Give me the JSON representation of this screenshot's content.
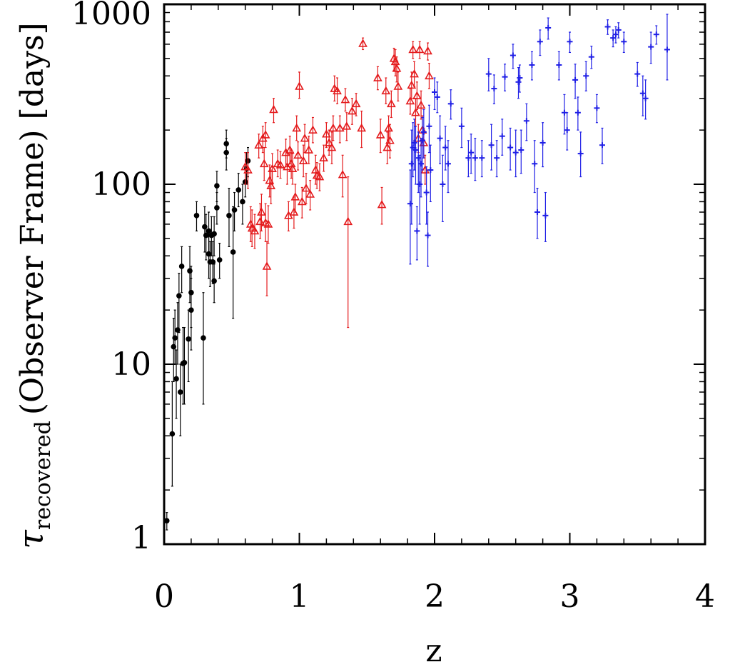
{
  "chart_data": {
    "type": "scatter",
    "xlabel": "z",
    "ylabel": {
      "symbol": "τ",
      "subscript": "recovered",
      "text": "(Observer Frame) [days]"
    },
    "xlim": [
      0,
      4
    ],
    "ylim": [
      1,
      1000
    ],
    "yscale": "log",
    "x_ticks": [
      "0",
      "1",
      "2",
      "3",
      "4"
    ],
    "y_ticks": [
      "1",
      "10",
      "100",
      "1000"
    ],
    "grid": false,
    "legend": "none",
    "colors": {
      "low_z": "#000000",
      "mid_z": "#e41a1c",
      "high_z": "#1f1fe6"
    },
    "series": [
      {
        "marker": "filled-circle",
        "color": "#000000",
        "points": [
          [
            0.02,
            1.35,
            1.2,
            1.5
          ],
          [
            0.06,
            4.1,
            2.1,
            8.0
          ],
          [
            0.07,
            12.5,
            8,
            18
          ],
          [
            0.08,
            14,
            10,
            20
          ],
          [
            0.09,
            8.3,
            5,
            12
          ],
          [
            0.1,
            15.5,
            10,
            22
          ],
          [
            0.11,
            24,
            15,
            32
          ],
          [
            0.12,
            7,
            4,
            10
          ],
          [
            0.13,
            35,
            25,
            45
          ],
          [
            0.14,
            10.1,
            6,
            16
          ],
          [
            0.15,
            10.2,
            6,
            16
          ],
          [
            0.18,
            13.8,
            8,
            20
          ],
          [
            0.19,
            33,
            22,
            45
          ],
          [
            0.2,
            20,
            12,
            30
          ],
          [
            0.2,
            25,
            16,
            35
          ],
          [
            0.24,
            67,
            55,
            80
          ],
          [
            0.29,
            14,
            6,
            25
          ],
          [
            0.3,
            58,
            42,
            75
          ],
          [
            0.31,
            52,
            38,
            68
          ],
          [
            0.33,
            41,
            30,
            55
          ],
          [
            0.33,
            55,
            42,
            70
          ],
          [
            0.34,
            37,
            27,
            48
          ],
          [
            0.35,
            52,
            40,
            66
          ],
          [
            0.36,
            37,
            28,
            48
          ],
          [
            0.37,
            53,
            40,
            66
          ],
          [
            0.37,
            29,
            22,
            36
          ],
          [
            0.39,
            98,
            80,
            118
          ],
          [
            0.39,
            74,
            60,
            90
          ],
          [
            0.41,
            38,
            30,
            47
          ],
          [
            0.46,
            150,
            120,
            180
          ],
          [
            0.46,
            168,
            140,
            200
          ],
          [
            0.48,
            67,
            45,
            95
          ],
          [
            0.51,
            42,
            18,
            75
          ],
          [
            0.52,
            72,
            55,
            90
          ],
          [
            0.55,
            93,
            75,
            115
          ],
          [
            0.58,
            80,
            60,
            100
          ],
          [
            0.6,
            103,
            85,
            125
          ],
          [
            0.61,
            122,
            100,
            150
          ],
          [
            0.62,
            135,
            110,
            160
          ]
        ]
      },
      {
        "marker": "open-triangle",
        "color": "#e41a1c",
        "points": [
          [
            0.6,
            125,
            100,
            150
          ],
          [
            0.62,
            120,
            95,
            150
          ],
          [
            0.64,
            60,
            48,
            75
          ],
          [
            0.65,
            57,
            45,
            72
          ],
          [
            0.67,
            55,
            44,
            68
          ],
          [
            0.7,
            165,
            140,
            190
          ],
          [
            0.71,
            62,
            50,
            78
          ],
          [
            0.72,
            70,
            55,
            88
          ],
          [
            0.73,
            180,
            150,
            210
          ],
          [
            0.74,
            130,
            105,
            160
          ],
          [
            0.75,
            188,
            160,
            220
          ],
          [
            0.75,
            61,
            48,
            78
          ],
          [
            0.76,
            35,
            24,
            48
          ],
          [
            0.77,
            60,
            47,
            76
          ],
          [
            0.78,
            105,
            85,
            128
          ],
          [
            0.79,
            98,
            78,
            120
          ],
          [
            0.8,
            122,
            100,
            148
          ],
          [
            0.81,
            260,
            220,
            300
          ],
          [
            0.84,
            130,
            110,
            155
          ],
          [
            0.86,
            128,
            108,
            152
          ],
          [
            0.9,
            150,
            125,
            178
          ],
          [
            0.91,
            125,
            100,
            152
          ],
          [
            0.92,
            67,
            55,
            80
          ],
          [
            0.93,
            155,
            130,
            185
          ],
          [
            0.94,
            130,
            108,
            155
          ],
          [
            0.95,
            122,
            100,
            148
          ],
          [
            0.96,
            70,
            57,
            85
          ],
          [
            0.97,
            85,
            70,
            100
          ],
          [
            0.98,
            205,
            175,
            240
          ],
          [
            0.99,
            145,
            120,
            172
          ],
          [
            1.0,
            350,
            300,
            420
          ],
          [
            1.02,
            80,
            65,
            96
          ],
          [
            1.03,
            135,
            110,
            165
          ],
          [
            1.04,
            180,
            150,
            215
          ],
          [
            1.05,
            95,
            78,
            115
          ],
          [
            1.07,
            155,
            130,
            185
          ],
          [
            1.08,
            88,
            72,
            105
          ],
          [
            1.1,
            200,
            170,
            235
          ],
          [
            1.12,
            120,
            100,
            145
          ],
          [
            1.13,
            112,
            95,
            132
          ],
          [
            1.15,
            110,
            92,
            130
          ],
          [
            1.18,
            140,
            118,
            165
          ],
          [
            1.2,
            190,
            160,
            220
          ],
          [
            1.22,
            170,
            145,
            200
          ],
          [
            1.24,
            160,
            130,
            195
          ],
          [
            1.25,
            205,
            175,
            240
          ],
          [
            1.26,
            340,
            290,
            400
          ],
          [
            1.28,
            330,
            280,
            390
          ],
          [
            1.3,
            205,
            170,
            240
          ],
          [
            1.32,
            113,
            85,
            145
          ],
          [
            1.34,
            295,
            255,
            340
          ],
          [
            1.35,
            210,
            175,
            250
          ],
          [
            1.36,
            62,
            16,
            110
          ],
          [
            1.39,
            255,
            215,
            300
          ],
          [
            1.42,
            280,
            240,
            320
          ],
          [
            1.46,
            205,
            160,
            255
          ],
          [
            1.47,
            605,
            560,
            650
          ],
          [
            1.58,
            390,
            335,
            450
          ],
          [
            1.6,
            188,
            150,
            230
          ],
          [
            1.61,
            77,
            60,
            96
          ],
          [
            1.64,
            330,
            280,
            390
          ],
          [
            1.65,
            160,
            130,
            195
          ],
          [
            1.66,
            205,
            170,
            240
          ],
          [
            1.67,
            175,
            140,
            215
          ],
          [
            1.68,
            280,
            235,
            330
          ],
          [
            1.7,
            500,
            430,
            570
          ],
          [
            1.71,
            480,
            400,
            560
          ],
          [
            1.72,
            440,
            370,
            510
          ],
          [
            1.73,
            350,
            290,
            420
          ],
          [
            1.82,
            290,
            245,
            340
          ],
          [
            1.83,
            355,
            300,
            420
          ],
          [
            1.84,
            560,
            500,
            620
          ],
          [
            1.85,
            410,
            350,
            480
          ],
          [
            1.86,
            250,
            210,
            300
          ],
          [
            1.87,
            310,
            260,
            370
          ],
          [
            1.88,
            180,
            150,
            215
          ],
          [
            1.89,
            560,
            500,
            620
          ],
          [
            1.9,
            275,
            230,
            330
          ],
          [
            1.91,
            200,
            165,
            240
          ],
          [
            1.92,
            170,
            140,
            205
          ],
          [
            1.93,
            120,
            100,
            145
          ],
          [
            1.95,
            550,
            490,
            610
          ],
          [
            1.96,
            400,
            340,
            470
          ]
        ]
      },
      {
        "marker": "plus",
        "color": "#1f1fe6",
        "points": [
          [
            1.82,
            78,
            36,
            120
          ],
          [
            1.83,
            130,
            60,
            200
          ],
          [
            1.84,
            160,
            110,
            220
          ],
          [
            1.85,
            170,
            120,
            230
          ],
          [
            1.86,
            155,
            100,
            210
          ],
          [
            1.87,
            55,
            38,
            75
          ],
          [
            1.88,
            140,
            90,
            195
          ],
          [
            1.89,
            100,
            60,
            145
          ],
          [
            1.9,
            130,
            85,
            180
          ],
          [
            1.91,
            175,
            120,
            235
          ],
          [
            1.92,
            195,
            140,
            260
          ],
          [
            1.94,
            90,
            60,
            125
          ],
          [
            1.95,
            52,
            35,
            70
          ],
          [
            1.96,
            210,
            150,
            275
          ],
          [
            1.97,
            120,
            80,
            165
          ],
          [
            2.0,
            325,
            260,
            390
          ],
          [
            2.02,
            305,
            250,
            370
          ],
          [
            2.04,
            180,
            130,
            240
          ],
          [
            2.06,
            100,
            62,
            145
          ],
          [
            2.08,
            160,
            120,
            210
          ],
          [
            2.1,
            130,
            90,
            175
          ],
          [
            2.12,
            280,
            230,
            335
          ],
          [
            2.2,
            210,
            160,
            265
          ],
          [
            2.25,
            140,
            110,
            175
          ],
          [
            2.27,
            150,
            115,
            190
          ],
          [
            2.3,
            140,
            105,
            180
          ],
          [
            2.35,
            140,
            110,
            175
          ],
          [
            2.4,
            410,
            330,
            500
          ],
          [
            2.42,
            165,
            120,
            215
          ],
          [
            2.44,
            340,
            280,
            405
          ],
          [
            2.46,
            140,
            110,
            175
          ],
          [
            2.5,
            185,
            145,
            230
          ],
          [
            2.52,
            395,
            330,
            465
          ],
          [
            2.56,
            160,
            120,
            205
          ],
          [
            2.58,
            520,
            440,
            600
          ],
          [
            2.6,
            150,
            110,
            200
          ],
          [
            2.62,
            370,
            300,
            445
          ],
          [
            2.63,
            390,
            325,
            460
          ],
          [
            2.64,
            155,
            115,
            200
          ],
          [
            2.68,
            225,
            175,
            280
          ],
          [
            2.72,
            460,
            380,
            545
          ],
          [
            2.74,
            130,
            90,
            175
          ],
          [
            2.76,
            70,
            50,
            95
          ],
          [
            2.78,
            620,
            520,
            720
          ],
          [
            2.8,
            170,
            125,
            220
          ],
          [
            2.82,
            67,
            48,
            90
          ],
          [
            2.84,
            740,
            640,
            840
          ],
          [
            2.92,
            460,
            380,
            545
          ],
          [
            2.96,
            250,
            190,
            315
          ],
          [
            2.98,
            200,
            155,
            250
          ],
          [
            3.0,
            620,
            540,
            700
          ],
          [
            3.04,
            380,
            300,
            465
          ],
          [
            3.06,
            250,
            200,
            305
          ],
          [
            3.08,
            148,
            110,
            195
          ],
          [
            3.12,
            400,
            330,
            480
          ],
          [
            3.16,
            510,
            440,
            585
          ],
          [
            3.2,
            265,
            220,
            315
          ],
          [
            3.24,
            165,
            130,
            205
          ],
          [
            3.28,
            750,
            680,
            820
          ],
          [
            3.32,
            650,
            580,
            720
          ],
          [
            3.34,
            680,
            610,
            750
          ],
          [
            3.36,
            720,
            650,
            790
          ],
          [
            3.4,
            620,
            540,
            700
          ],
          [
            3.5,
            410,
            350,
            475
          ],
          [
            3.54,
            320,
            240,
            400
          ],
          [
            3.56,
            300,
            230,
            380
          ],
          [
            3.6,
            580,
            470,
            700
          ],
          [
            3.64,
            680,
            600,
            760
          ],
          [
            3.72,
            560,
            380,
            880
          ]
        ]
      }
    ]
  }
}
